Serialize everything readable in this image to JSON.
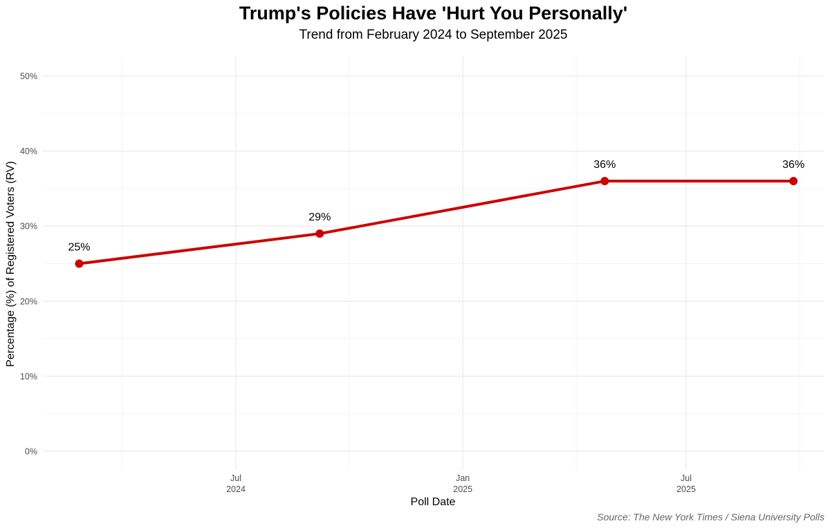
{
  "chart_data": {
    "type": "line",
    "title": "Trump's Policies Have 'Hurt You Personally'",
    "subtitle": "Trend from February 2024 to September 2025",
    "xlabel": "Poll Date",
    "ylabel": "Percentage (%) of Registered Voters (RV)",
    "caption": "Source: The New York Times / Siena University Polls",
    "ylim": [
      0,
      50
    ],
    "y_ticks": [
      0,
      10,
      20,
      30,
      40,
      50
    ],
    "y_tick_labels": [
      "0%",
      "10%",
      "20%",
      "30%",
      "40%",
      "50%"
    ],
    "x_ticks": [
      {
        "date": "2024-07-01",
        "line1": "Jul",
        "line2": "2024"
      },
      {
        "date": "2025-01-01",
        "line1": "Jan",
        "line2": "2025"
      },
      {
        "date": "2025-07-01",
        "line1": "Jul",
        "line2": "2025"
      }
    ],
    "series": [
      {
        "name": "Hurt You Personally",
        "color": "#cc0000",
        "points": [
          {
            "date": "2024-02-25",
            "value": 25,
            "label": "25%"
          },
          {
            "date": "2024-09-07",
            "value": 29,
            "label": "29%"
          },
          {
            "date": "2025-04-26",
            "value": 36,
            "label": "36%"
          },
          {
            "date": "2025-09-26",
            "value": 36,
            "label": "36%"
          }
        ]
      }
    ],
    "grid": true
  }
}
